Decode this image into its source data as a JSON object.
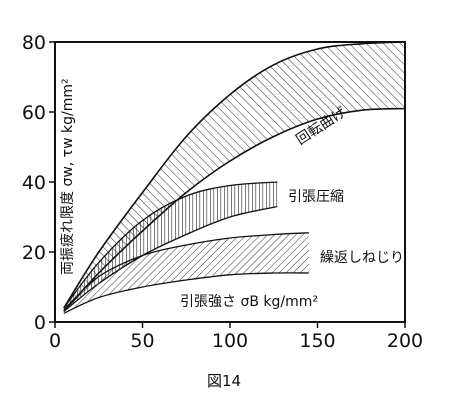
{
  "chart_data": {
    "type": "area",
    "title": "",
    "caption": "図14",
    "xlabel": "引張強さ σB kg/mm²",
    "ylabel": "両振疲れ限度 σw, τw kg/mm²",
    "xlim": [
      0,
      200
    ],
    "ylim": [
      0,
      80
    ],
    "x_ticks": [
      0,
      50,
      100,
      150,
      200
    ],
    "y_ticks": [
      0,
      20,
      40,
      60,
      80
    ],
    "grid": false,
    "series": [
      {
        "name": "回転曲げ",
        "upper": {
          "x": [
            5,
            25,
            50,
            75,
            100,
            125,
            150,
            175,
            200
          ],
          "y": [
            4,
            20,
            37,
            53,
            65,
            73.5,
            78,
            79.5,
            80
          ]
        },
        "lower": {
          "x": [
            5,
            25,
            50,
            75,
            100,
            125,
            150,
            175,
            200
          ],
          "y": [
            3,
            14,
            26,
            37,
            46,
            53,
            58,
            60.5,
            61
          ]
        }
      },
      {
        "name": "引張圧縮",
        "upper": {
          "x": [
            5,
            25,
            50,
            75,
            100,
            127
          ],
          "y": [
            4,
            17,
            29,
            36,
            39,
            40
          ]
        },
        "lower": {
          "x": [
            5,
            25,
            50,
            75,
            100,
            127
          ],
          "y": [
            3,
            11,
            19,
            25,
            30,
            33
          ]
        }
      },
      {
        "name": "繰返しねじり",
        "upper": {
          "x": [
            5,
            25,
            50,
            75,
            100,
            125,
            145
          ],
          "y": [
            3.5,
            13,
            19,
            22,
            24,
            25,
            25.5
          ]
        },
        "lower": {
          "x": [
            5,
            25,
            50,
            75,
            100,
            125,
            145
          ],
          "y": [
            2.5,
            7,
            10,
            12,
            13.5,
            14,
            14
          ]
        }
      }
    ]
  }
}
